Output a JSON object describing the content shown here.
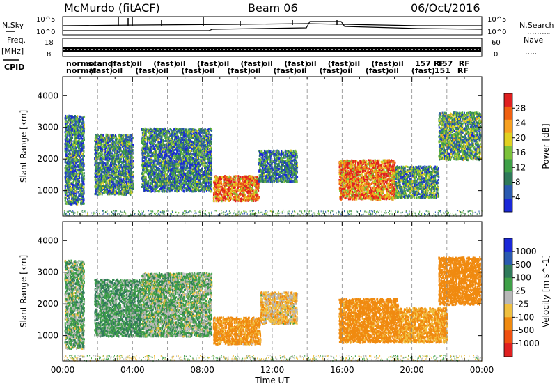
{
  "header": {
    "station": "McMurdo (fitACF)",
    "beam": "Beam 06",
    "date": "06/Oct/2016"
  },
  "strips": {
    "nsky_label": "N.Sky",
    "nsearch_label": "N.Search",
    "nsky_ticks": [
      "10^5",
      "10^0"
    ],
    "nsearch_ticks": [
      "10^5",
      "10^0"
    ],
    "freq_label": "Freq.",
    "freq_unit": "[MHz]",
    "freq_ticks": [
      "18",
      "8"
    ],
    "nave_label": "Nave",
    "nave_ticks": [
      "60",
      "0"
    ],
    "cpid_label": "CPID",
    "cpid_row1": [
      "normol",
      "scand",
      "(fast)",
      "oil",
      "(fast)",
      "oil",
      "(fast)",
      "oil",
      "(fast)",
      "oil",
      "(fast)",
      "oil",
      "(fast)",
      "oil",
      "(fast)",
      "oil",
      "157 RF",
      "157",
      "RF"
    ],
    "cpid_row2": [
      "normal",
      "(fast)",
      "oil",
      "(fast)",
      "oil",
      "(fast)",
      "oil",
      "(fast)",
      "oil",
      "(fast)",
      "oil",
      "(fast)",
      "oil",
      "(fast)",
      "oil",
      "(fast)",
      "151",
      "RF"
    ]
  },
  "chart_data": [
    {
      "type": "heatmap",
      "title": "",
      "xlabel": "",
      "ylabel": "Slant Range [km]",
      "x_ticks": [
        "00:00",
        "04:00",
        "08:00",
        "12:00",
        "16:00",
        "20:00",
        "00:00"
      ],
      "xlim_hours": [
        0,
        24
      ],
      "y_ticks": [
        1000,
        2000,
        3000,
        4000
      ],
      "ylim": [
        200,
        4600
      ],
      "grid": "vertical dashed every 2h",
      "colorbar": {
        "label": "Power [dB]",
        "ticks": [
          4,
          8,
          12,
          16,
          20,
          24,
          28
        ],
        "range": [
          0,
          32
        ],
        "colors": [
          "#1a28d8",
          "#2a5ab0",
          "#2f7a5a",
          "#3fa048",
          "#7cc23a",
          "#e0d020",
          "#f7a020",
          "#f06010",
          "#e02020"
        ]
      },
      "regions": [
        {
          "t0": 8.6,
          "t1": 11.2,
          "r0": 700,
          "r1": 1500,
          "value": 26
        },
        {
          "t0": 15.8,
          "t1": 19.0,
          "r0": 750,
          "r1": 2000,
          "value": 25
        },
        {
          "t0": 0.1,
          "t1": 1.2,
          "r0": 600,
          "r1": 3400,
          "value": 9
        },
        {
          "t0": 1.8,
          "t1": 4.0,
          "r0": 900,
          "r1": 2800,
          "value": 10
        },
        {
          "t0": 4.5,
          "t1": 8.5,
          "r0": 1000,
          "r1": 3000,
          "value": 9
        },
        {
          "t0": 11.2,
          "t1": 13.4,
          "r0": 1300,
          "r1": 2300,
          "value": 8
        },
        {
          "t0": 19.0,
          "t1": 21.5,
          "r0": 800,
          "r1": 1800,
          "value": 11
        },
        {
          "t0": 21.5,
          "t1": 23.9,
          "r0": 2000,
          "r1": 3500,
          "value": 12
        }
      ]
    },
    {
      "type": "heatmap",
      "title": "",
      "xlabel": "Time UT",
      "ylabel": "Slant Range [km]",
      "x_ticks": [
        "00:00",
        "04:00",
        "08:00",
        "12:00",
        "16:00",
        "20:00",
        "00:00"
      ],
      "xlim_hours": [
        0,
        24
      ],
      "y_ticks": [
        1000,
        2000,
        3000,
        4000
      ],
      "ylim": [
        200,
        4600
      ],
      "grid": "vertical dashed every 2h",
      "colorbar": {
        "label": "Velocity [m s^-1]",
        "ticks": [
          1000,
          500,
          100,
          25,
          -25,
          -100,
          -500,
          -1000
        ],
        "colors": [
          "#1a28d8",
          "#2a5ab0",
          "#2f7a5a",
          "#3fa048",
          "#b8b8b8",
          "#f0c040",
          "#f08a10",
          "#f05010",
          "#e02020"
        ]
      },
      "regions": [
        {
          "t0": 8.6,
          "t1": 11.3,
          "r0": 750,
          "r1": 1600,
          "value": -200
        },
        {
          "t0": 15.8,
          "t1": 19.2,
          "r0": 800,
          "r1": 2200,
          "value": -250
        },
        {
          "t0": 0.1,
          "t1": 1.2,
          "r0": 600,
          "r1": 3400,
          "value": 50
        },
        {
          "t0": 1.8,
          "t1": 4.5,
          "r0": 1000,
          "r1": 2800,
          "value": 80
        },
        {
          "t0": 4.5,
          "t1": 8.5,
          "r0": 1000,
          "r1": 3000,
          "value": 40
        },
        {
          "t0": 11.3,
          "t1": 13.4,
          "r0": 1400,
          "r1": 2400,
          "value": -60
        },
        {
          "t0": 19.2,
          "t1": 22.0,
          "r0": 800,
          "r1": 1900,
          "value": -120
        },
        {
          "t0": 21.5,
          "t1": 23.9,
          "r0": 2000,
          "r1": 3500,
          "value": -300
        }
      ]
    }
  ]
}
